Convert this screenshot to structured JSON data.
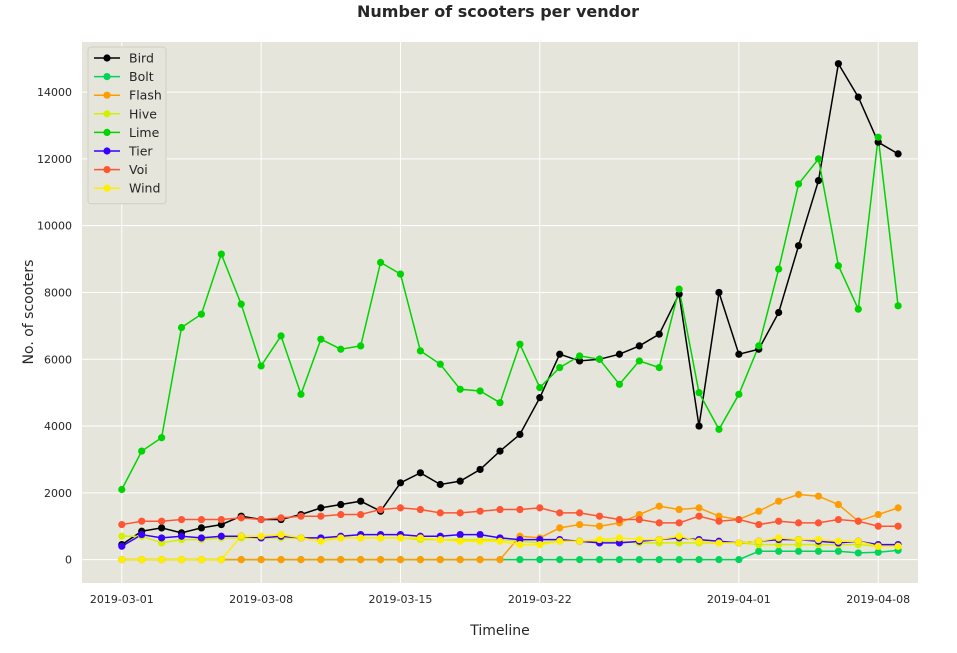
{
  "chart_data": {
    "type": "line",
    "title": "Number of scooters per vendor",
    "xlabel": "Timeline",
    "ylabel": "No. of scooters",
    "x": [
      "2019-03-01",
      "2019-03-02",
      "2019-03-03",
      "2019-03-04",
      "2019-03-05",
      "2019-03-06",
      "2019-03-07",
      "2019-03-08",
      "2019-03-09",
      "2019-03-10",
      "2019-03-11",
      "2019-03-12",
      "2019-03-13",
      "2019-03-14",
      "2019-03-15",
      "2019-03-16",
      "2019-03-17",
      "2019-03-18",
      "2019-03-19",
      "2019-03-20",
      "2019-03-21",
      "2019-03-22",
      "2019-03-23",
      "2019-03-24",
      "2019-03-25",
      "2019-03-26",
      "2019-03-27",
      "2019-03-28",
      "2019-03-29",
      "2019-03-30",
      "2019-03-31",
      "2019-04-01",
      "2019-04-02",
      "2019-04-03",
      "2019-04-04",
      "2019-04-05",
      "2019-04-06",
      "2019-04-07",
      "2019-04-08",
      "2019-04-09"
    ],
    "xticks": [
      "2019-03-01",
      "2019-03-08",
      "2019-03-15",
      "2019-03-22",
      "2019-04-01",
      "2019-04-08"
    ],
    "xlim": [
      "2019-02-27",
      "2019-04-10"
    ],
    "ylim": [
      -700,
      15500
    ],
    "yticks": [
      0,
      2000,
      4000,
      6000,
      8000,
      10000,
      12000,
      14000
    ],
    "grid": true,
    "legend_position": "top-left",
    "background_color": "#e5e5dc",
    "series": [
      {
        "name": "Bird",
        "color": "#000000",
        "values": [
          450,
          850,
          950,
          800,
          950,
          1050,
          1300,
          1200,
          1200,
          1350,
          1550,
          1650,
          1750,
          1450,
          2300,
          2600,
          2250,
          2350,
          2700,
          3250,
          3750,
          4850,
          6150,
          5950,
          6000,
          6150,
          6400,
          6750,
          7950,
          4000,
          8000,
          6150,
          6300,
          7400,
          9400,
          11350,
          14850,
          13850,
          12500,
          12150
        ]
      },
      {
        "name": "Bolt",
        "color": "#00d45a",
        "values": [
          0,
          0,
          0,
          0,
          0,
          0,
          0,
          0,
          0,
          0,
          0,
          0,
          0,
          0,
          0,
          0,
          0,
          0,
          0,
          0,
          0,
          0,
          0,
          0,
          0,
          0,
          0,
          0,
          0,
          0,
          0,
          0,
          250,
          250,
          250,
          250,
          250,
          200,
          220,
          280
        ]
      },
      {
        "name": "Flash",
        "color": "#ff9d00",
        "values": [
          0,
          0,
          0,
          0,
          0,
          0,
          0,
          0,
          0,
          0,
          0,
          0,
          0,
          0,
          0,
          0,
          0,
          0,
          0,
          0,
          700,
          650,
          950,
          1050,
          1000,
          1100,
          1350,
          1600,
          1500,
          1550,
          1300,
          1200,
          1450,
          1750,
          1950,
          1900,
          1650,
          1150,
          1350,
          1550
        ]
      },
      {
        "name": "Hive",
        "color": "#d4f000",
        "values": [
          700,
          700,
          500,
          600,
          600,
          650,
          650,
          650,
          650,
          650,
          650,
          650,
          650,
          650,
          650,
          600,
          600,
          600,
          600,
          600,
          550,
          500,
          550,
          550,
          550,
          550,
          500,
          500,
          500,
          500,
          500,
          500,
          450,
          450,
          450,
          450,
          450,
          450,
          400,
          400
        ]
      },
      {
        "name": "Lime",
        "color": "#00d400",
        "values": [
          2100,
          3250,
          3650,
          6950,
          7350,
          9150,
          7650,
          5800,
          6700,
          4950,
          6600,
          6300,
          6400,
          8900,
          8550,
          6250,
          5850,
          5100,
          5050,
          4700,
          6450,
          5150,
          5750,
          6100,
          6000,
          5250,
          5950,
          5750,
          8100,
          5000,
          3900,
          4950,
          6400,
          8700,
          11250,
          12000,
          8800,
          7500,
          12650,
          7600
        ]
      },
      {
        "name": "Tier",
        "color": "#3a00ff",
        "values": [
          400,
          750,
          650,
          700,
          650,
          700,
          700,
          650,
          700,
          650,
          650,
          700,
          750,
          750,
          750,
          700,
          700,
          750,
          750,
          650,
          600,
          600,
          600,
          550,
          500,
          500,
          550,
          600,
          650,
          600,
          550,
          500,
          550,
          600,
          600,
          550,
          500,
          550,
          450,
          450
        ]
      },
      {
        "name": "Voi",
        "color": "#ff5533",
        "values": [
          1050,
          1150,
          1150,
          1200,
          1200,
          1200,
          1250,
          1200,
          1250,
          1300,
          1300,
          1350,
          1350,
          1500,
          1550,
          1500,
          1400,
          1400,
          1450,
          1500,
          1500,
          1550,
          1400,
          1400,
          1300,
          1200,
          1200,
          1100,
          1100,
          1300,
          1150,
          1200,
          1050,
          1150,
          1100,
          1100,
          1200,
          1150,
          1000,
          1000
        ]
      },
      {
        "name": "Wind",
        "color": "#ffee00",
        "values": [
          0,
          0,
          0,
          0,
          0,
          0,
          700,
          700,
          750,
          650,
          550,
          650,
          650,
          650,
          650,
          650,
          600,
          550,
          550,
          550,
          450,
          450,
          550,
          550,
          600,
          650,
          600,
          600,
          700,
          550,
          500,
          500,
          550,
          650,
          600,
          600,
          550,
          550,
          400,
          400
        ]
      }
    ]
  }
}
